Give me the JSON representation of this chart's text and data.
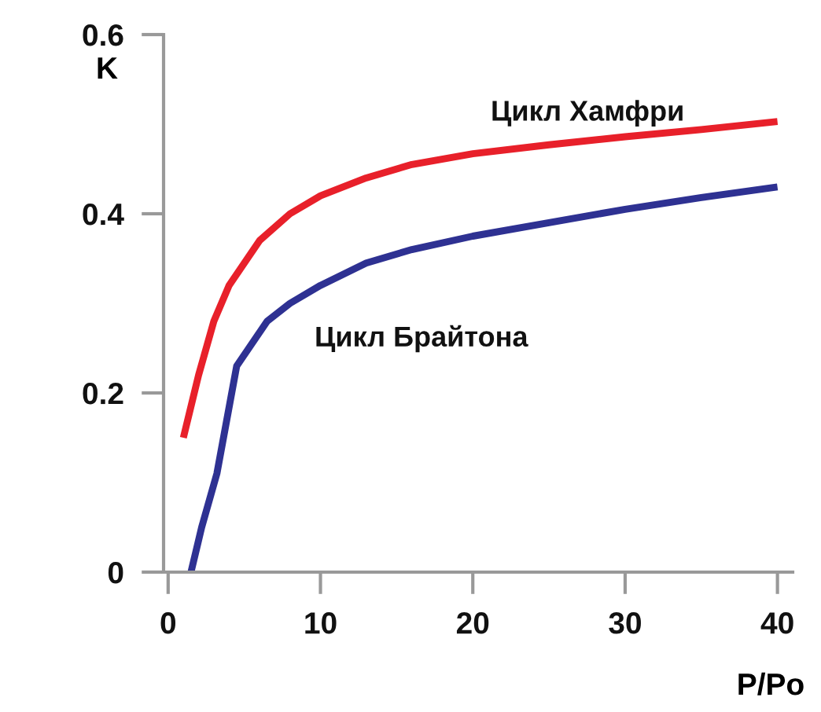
{
  "chart_data": {
    "type": "line",
    "xlabel": "P/Po",
    "ylabel": "K",
    "xlim": [
      -0.3,
      41
    ],
    "ylim": [
      0,
      0.6
    ],
    "xticks": [
      0,
      10,
      20,
      30,
      40
    ],
    "yticks": [
      0,
      0.2,
      0.4,
      0.6
    ],
    "grid": false,
    "legend": false,
    "line_style": "solid",
    "marker": "none",
    "series": [
      {
        "name": "Цикл Хамфри",
        "color": "#e8202a",
        "x": [
          1,
          2,
          3,
          4,
          5,
          6,
          8,
          10,
          13,
          16,
          20,
          25,
          30,
          35,
          40
        ],
        "values": [
          0.15,
          0.22,
          0.28,
          0.32,
          0.345,
          0.37,
          0.4,
          0.42,
          0.44,
          0.455,
          0.467,
          0.477,
          0.486,
          0.494,
          0.503
        ]
      },
      {
        "name": "Цикл Брайтона",
        "color": "#2e3192",
        "x": [
          1.5,
          2.2,
          3.2,
          4.5,
          6.5,
          8,
          10,
          13,
          16,
          20,
          25,
          30,
          35,
          40
        ],
        "values": [
          0,
          0.05,
          0.11,
          0.23,
          0.28,
          0.3,
          0.32,
          0.345,
          0.36,
          0.375,
          0.39,
          0.405,
          0.418,
          0.43
        ]
      }
    ]
  }
}
